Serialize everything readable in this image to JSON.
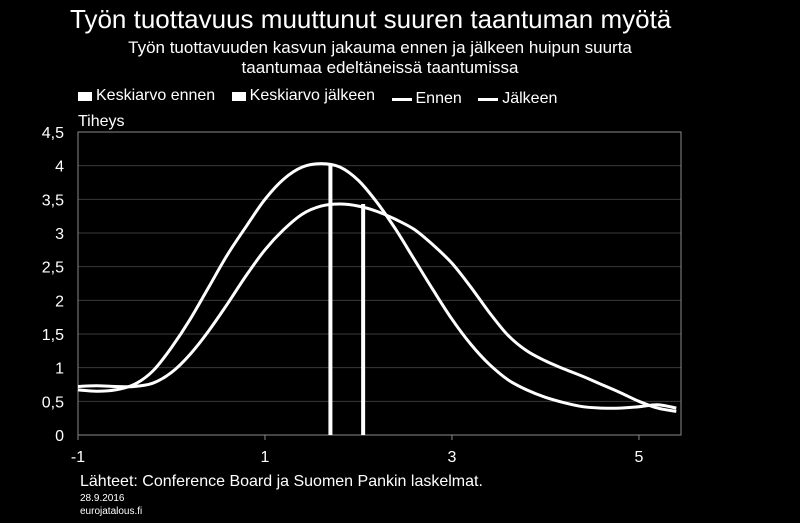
{
  "header": {
    "title": "Työn tuottavuus muuttunut suuren taantuman myötä",
    "subtitle_line1": "Työn tuottavuuden kasvun jakauma ennen ja jälkeen huipun suurta",
    "subtitle_line2": "taantumaa edeltäneissä taantumissa"
  },
  "footer": {
    "source": "Lähteet: Conference Board ja Suomen Pankin laskelmat.",
    "date": "28.9.2016",
    "site": "eurojatalous.fi"
  },
  "chart_data": {
    "type": "line",
    "title": "Työn tuottavuus muuttunut suuren taantuman myötä",
    "subtitle": "Työn tuottavuuden kasvun jakauma ennen ja jälkeen huipun suurta taantumaa edeltäneissä taantumissa",
    "ylabel": "Tiheys",
    "xlabel": "",
    "xlim": [
      -1,
      5.45
    ],
    "ylim": [
      0,
      4.5
    ],
    "x_ticks": [
      -1,
      1,
      3,
      5
    ],
    "x_tick_labels": [
      "-1",
      "1",
      "3",
      "5"
    ],
    "y_ticks": [
      0,
      0.5,
      1,
      1.5,
      2,
      2.5,
      3,
      3.5,
      4,
      4.5
    ],
    "y_tick_labels": [
      "0",
      "0,5",
      "1",
      "1,5",
      "2",
      "2,5",
      "3",
      "3,5",
      "4",
      "4,5"
    ],
    "grid": "horizontal",
    "legend_position": "top",
    "legend": [
      "Keskiarvo ennen",
      "Keskiarvo jälkeen",
      "Ennen",
      "Jälkeen"
    ],
    "mean_lines": [
      {
        "name": "Keskiarvo ennen",
        "x": 1.7
      },
      {
        "name": "Keskiarvo jälkeen",
        "x": 2.05
      }
    ],
    "series": [
      {
        "name": "Ennen",
        "x": [
          -1,
          -0.8,
          -0.6,
          -0.4,
          -0.2,
          0,
          0.2,
          0.4,
          0.6,
          0.8,
          1,
          1.2,
          1.4,
          1.6,
          1.8,
          2,
          2.2,
          2.4,
          2.6,
          2.8,
          3,
          3.2,
          3.4,
          3.6,
          3.8,
          4,
          4.2,
          4.4,
          4.6,
          4.8,
          5,
          5.2,
          5.4
        ],
        "values": [
          0.67,
          0.65,
          0.67,
          0.75,
          0.95,
          1.3,
          1.72,
          2.2,
          2.68,
          3.1,
          3.5,
          3.8,
          3.98,
          4.03,
          3.98,
          3.78,
          3.45,
          3.05,
          2.6,
          2.15,
          1.72,
          1.35,
          1.05,
          0.82,
          0.67,
          0.56,
          0.48,
          0.42,
          0.4,
          0.4,
          0.42,
          0.45,
          0.4
        ]
      },
      {
        "name": "Jälkeen",
        "x": [
          -1,
          -0.8,
          -0.6,
          -0.4,
          -0.2,
          0,
          0.2,
          0.4,
          0.6,
          0.8,
          1,
          1.2,
          1.4,
          1.6,
          1.8,
          2,
          2.2,
          2.4,
          2.6,
          2.8,
          3,
          3.2,
          3.4,
          3.6,
          3.8,
          4,
          4.2,
          4.4,
          4.6,
          4.8,
          5,
          5.2,
          5.4
        ],
        "values": [
          0.72,
          0.73,
          0.72,
          0.72,
          0.77,
          0.93,
          1.2,
          1.55,
          1.95,
          2.37,
          2.75,
          3.05,
          3.28,
          3.4,
          3.43,
          3.4,
          3.32,
          3.2,
          3.05,
          2.82,
          2.55,
          2.2,
          1.82,
          1.48,
          1.25,
          1.1,
          0.98,
          0.87,
          0.75,
          0.63,
          0.5,
          0.4,
          0.35
        ]
      }
    ]
  }
}
